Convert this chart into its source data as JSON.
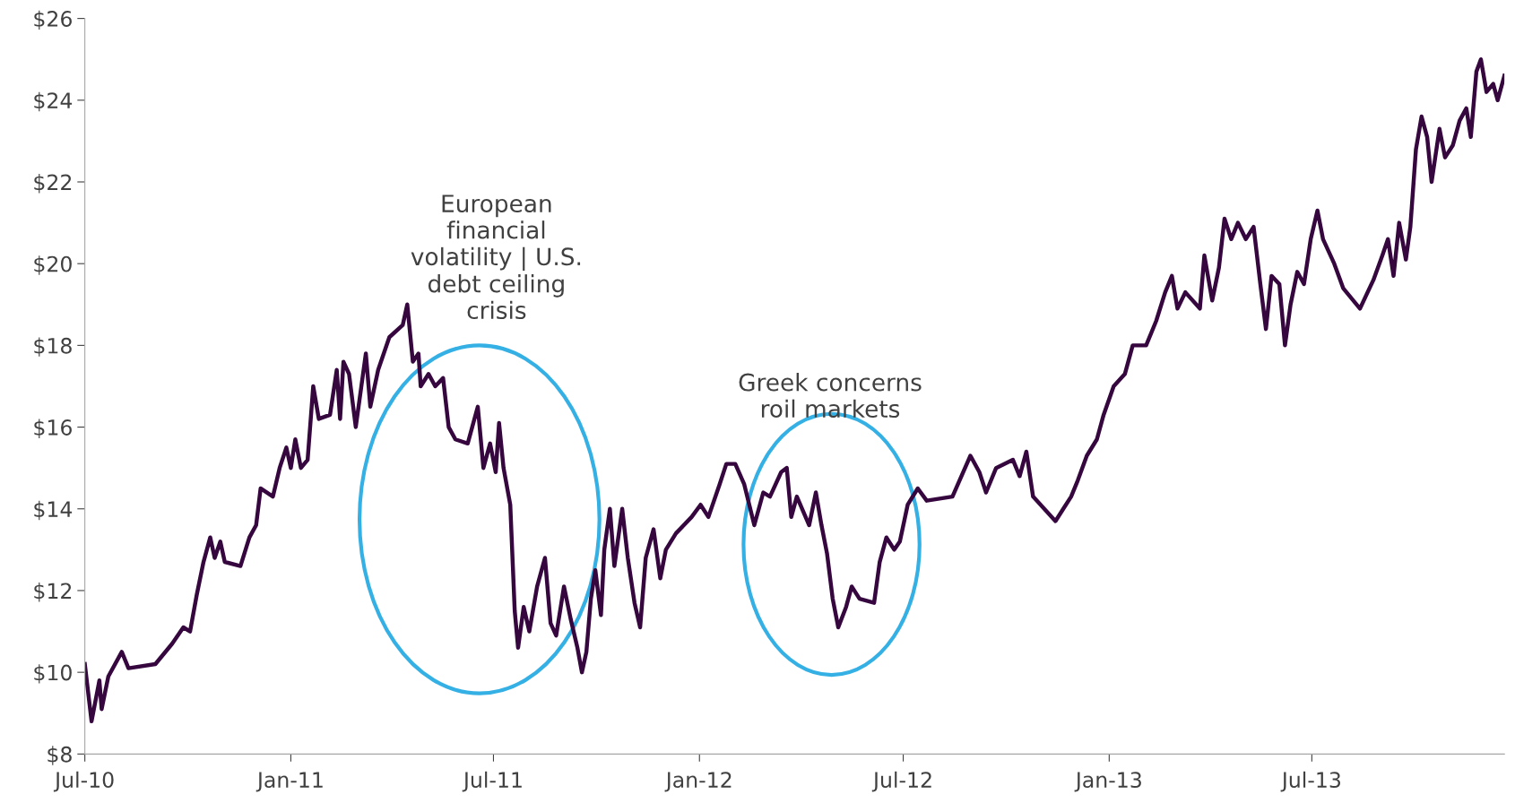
{
  "chart_data": {
    "type": "line",
    "x": [
      "2010-07-01",
      "2010-07-07",
      "2010-07-14",
      "2010-07-16",
      "2010-07-22",
      "2010-08-03",
      "2010-08-09",
      "2010-09-02",
      "2010-09-17",
      "2010-09-27",
      "2010-10-03",
      "2010-10-09",
      "2010-10-15",
      "2010-10-21",
      "2010-10-25",
      "2010-10-30",
      "2010-11-03",
      "2010-11-17",
      "2010-11-25",
      "2010-12-01",
      "2010-12-05",
      "2010-12-16",
      "2010-12-22",
      "2010-12-28",
      "2011-01-01",
      "2011-01-05",
      "2011-01-10",
      "2011-01-16",
      "2011-01-21",
      "2011-01-26",
      "2011-02-05",
      "2011-02-11",
      "2011-02-14",
      "2011-02-17",
      "2011-02-22",
      "2011-02-28",
      "2011-03-05",
      "2011-03-09",
      "2011-03-13",
      "2011-03-20",
      "2011-03-30",
      "2011-04-11",
      "2011-04-15",
      "2011-04-20",
      "2011-04-25",
      "2011-04-27",
      "2011-05-04",
      "2011-05-10",
      "2011-05-17",
      "2011-05-22",
      "2011-05-28",
      "2011-06-08",
      "2011-06-12",
      "2011-06-17",
      "2011-06-22",
      "2011-06-28",
      "2011-07-03",
      "2011-07-06",
      "2011-07-10",
      "2011-07-16",
      "2011-07-20",
      "2011-07-23",
      "2011-07-28",
      "2011-08-02",
      "2011-08-09",
      "2011-08-16",
      "2011-08-21",
      "2011-08-26",
      "2011-09-02",
      "2011-09-08",
      "2011-09-14",
      "2011-09-18",
      "2011-09-22",
      "2011-09-26",
      "2011-09-30",
      "2011-10-05",
      "2011-10-08",
      "2011-10-13",
      "2011-10-17",
      "2011-10-24",
      "2011-10-29",
      "2011-11-04",
      "2011-11-09",
      "2011-11-14",
      "2011-11-21",
      "2011-11-27",
      "2011-12-02",
      "2011-12-11",
      "2011-12-25",
      "2012-01-02",
      "2012-01-09",
      "2012-01-19",
      "2012-01-25",
      "2012-02-02",
      "2012-02-10",
      "2012-02-19",
      "2012-02-27",
      "2012-03-04",
      "2012-03-14",
      "2012-03-19",
      "2012-03-23",
      "2012-03-28",
      "2012-04-08",
      "2012-04-14",
      "2012-04-19",
      "2012-04-24",
      "2012-04-29",
      "2012-05-04",
      "2012-05-11",
      "2012-05-16",
      "2012-05-23",
      "2012-06-05",
      "2012-06-10",
      "2012-06-16",
      "2012-06-23",
      "2012-06-28",
      "2012-07-05",
      "2012-07-14",
      "2012-07-22",
      "2012-08-14",
      "2012-08-30",
      "2012-09-07",
      "2012-09-13",
      "2012-09-22",
      "2012-10-07",
      "2012-10-13",
      "2012-10-19",
      "2012-10-25",
      "2012-11-04",
      "2012-11-14",
      "2012-11-21",
      "2012-11-28",
      "2012-12-04",
      "2012-12-12",
      "2012-12-21",
      "2012-12-27",
      "2013-01-05",
      "2013-01-15",
      "2013-01-22",
      "2013-02-03",
      "2013-02-12",
      "2013-02-20",
      "2013-02-26",
      "2013-03-03",
      "2013-03-10",
      "2013-03-23",
      "2013-03-27",
      "2013-04-03",
      "2013-04-09",
      "2013-04-14",
      "2013-04-20",
      "2013-04-26",
      "2013-05-03",
      "2013-05-10",
      "2013-05-16",
      "2013-05-21",
      "2013-05-26",
      "2013-06-02",
      "2013-06-07",
      "2013-06-12",
      "2013-06-18",
      "2013-06-24",
      "2013-06-30",
      "2013-07-06",
      "2013-07-11",
      "2013-07-21",
      "2013-07-29",
      "2013-08-13",
      "2013-08-25",
      "2013-09-02",
      "2013-09-07",
      "2013-09-12",
      "2013-09-17",
      "2013-09-23",
      "2013-09-27",
      "2013-10-02",
      "2013-10-07",
      "2013-10-12",
      "2013-10-16",
      "2013-10-23",
      "2013-10-28",
      "2013-11-04",
      "2013-11-10",
      "2013-11-16",
      "2013-11-20",
      "2013-11-25",
      "2013-11-29",
      "2013-12-04",
      "2013-12-10",
      "2013-12-14",
      "2013-12-20"
    ],
    "series": [
      {
        "color": "#36073f",
        "values": [
          10.2,
          8.8,
          9.8,
          9.1,
          9.9,
          10.5,
          10.1,
          10.2,
          10.7,
          11.1,
          11.0,
          11.9,
          12.7,
          13.3,
          12.8,
          13.2,
          12.7,
          12.6,
          13.3,
          13.6,
          14.5,
          14.3,
          15.0,
          15.5,
          15.0,
          15.7,
          15.0,
          15.2,
          17.0,
          16.2,
          16.3,
          17.4,
          16.2,
          17.6,
          17.3,
          16.0,
          17.0,
          17.8,
          16.5,
          17.4,
          18.2,
          18.5,
          19.0,
          17.6,
          17.8,
          17.0,
          17.3,
          17.0,
          17.2,
          16.0,
          15.7,
          15.6,
          16.0,
          16.5,
          15.0,
          15.6,
          14.9,
          16.1,
          15.0,
          14.1,
          11.5,
          10.6,
          11.6,
          11.0,
          12.1,
          12.8,
          11.2,
          10.9,
          12.1,
          11.3,
          10.6,
          10.0,
          10.5,
          11.8,
          12.5,
          11.4,
          13.0,
          14.0,
          12.6,
          14.0,
          12.8,
          11.7,
          11.1,
          12.8,
          13.5,
          12.3,
          13.0,
          13.4,
          13.8,
          14.1,
          13.8,
          14.6,
          15.1,
          15.1,
          14.6,
          13.6,
          14.4,
          14.3,
          14.9,
          15.0,
          13.8,
          14.3,
          13.6,
          14.4,
          13.6,
          12.9,
          11.8,
          11.1,
          11.6,
          12.1,
          11.8,
          11.7,
          12.7,
          13.3,
          13.0,
          13.2,
          14.1,
          14.5,
          14.2,
          14.3,
          15.3,
          14.9,
          14.4,
          15.0,
          15.2,
          14.8,
          15.4,
          14.3,
          14.0,
          13.7,
          14.0,
          14.3,
          14.7,
          15.3,
          15.7,
          16.3,
          17.0,
          17.3,
          18.0,
          18.0,
          18.6,
          19.3,
          19.7,
          18.9,
          19.3,
          18.9,
          20.2,
          19.1,
          19.9,
          21.1,
          20.6,
          21.0,
          20.6,
          20.9,
          19.5,
          18.4,
          19.7,
          19.5,
          18.0,
          19.0,
          19.8,
          19.5,
          20.6,
          21.3,
          20.6,
          20.0,
          19.4,
          18.9,
          19.6,
          20.2,
          20.6,
          19.7,
          21.0,
          20.1,
          20.9,
          22.8,
          23.6,
          23.1,
          22.0,
          23.3,
          22.6,
          22.9,
          23.5,
          23.8,
          23.1,
          24.7,
          25.0,
          24.2,
          24.4,
          24.0,
          24.6
        ]
      }
    ],
    "xlim": [
      "2010-07-01",
      "2013-12-20"
    ],
    "xticks": [
      {
        "value": "2010-07-01",
        "label": "Jul-10"
      },
      {
        "value": "2011-01-01",
        "label": "Jan-11"
      },
      {
        "value": "2011-07-01",
        "label": "Jul-11"
      },
      {
        "value": "2012-01-01",
        "label": "Jan-12"
      },
      {
        "value": "2012-07-01",
        "label": "Jul-12"
      },
      {
        "value": "2013-01-01",
        "label": "Jan-13"
      },
      {
        "value": "2013-07-01",
        "label": "Jul-13"
      }
    ],
    "ylim": [
      8,
      26
    ],
    "yticks": [
      {
        "value": 8,
        "label": "$8"
      },
      {
        "value": 10,
        "label": "$10"
      },
      {
        "value": 12,
        "label": "$12"
      },
      {
        "value": 14,
        "label": "$14"
      },
      {
        "value": 16,
        "label": "$16"
      },
      {
        "value": 18,
        "label": "$18"
      },
      {
        "value": 20,
        "label": "$20"
      },
      {
        "value": 22,
        "label": "$22"
      },
      {
        "value": 24,
        "label": "$24"
      },
      {
        "value": 26,
        "label": "$26"
      }
    ],
    "annotations": [
      "European\nfinancial\nvolatility | U.S.\ndebt ceiling\ncrisis",
      "Greek concerns\nroil markets"
    ],
    "grid": false,
    "legend": false,
    "marker": "none",
    "line_style": "solid"
  }
}
